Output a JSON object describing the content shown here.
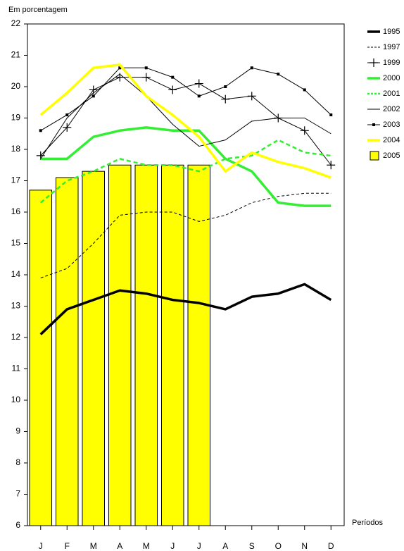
{
  "chart_data": {
    "type": "line",
    "y_label": "Em porcentagem",
    "x_label": "Períodos",
    "categories": [
      "J",
      "F",
      "M",
      "A",
      "M",
      "J",
      "J",
      "A",
      "S",
      "O",
      "N",
      "D"
    ],
    "ylim": [
      6,
      22
    ],
    "yticks": [
      6,
      7,
      8,
      9,
      10,
      11,
      12,
      13,
      14,
      15,
      16,
      17,
      18,
      19,
      20,
      21,
      22
    ],
    "legend": "right",
    "series": [
      {
        "name": "1995",
        "color": "#000000",
        "weight": "thick",
        "line_style": "solid",
        "marker": "none",
        "values": [
          12.1,
          12.9,
          13.2,
          13.5,
          13.4,
          13.2,
          13.1,
          12.9,
          13.3,
          13.4,
          13.7,
          13.2
        ]
      },
      {
        "name": "1997",
        "color": "#000000",
        "weight": "thin",
        "line_style": "dashed",
        "marker": "none",
        "values": [
          13.9,
          14.2,
          15.0,
          15.9,
          16.0,
          16.0,
          15.7,
          15.9,
          16.3,
          16.5,
          16.6,
          16.6
        ]
      },
      {
        "name": "1999",
        "color": "#000000",
        "weight": "thin",
        "line_style": "solid",
        "marker": "plus",
        "values": [
          17.8,
          18.7,
          19.9,
          20.3,
          20.3,
          19.9,
          20.1,
          19.6,
          19.7,
          19.0,
          18.6,
          17.5
        ]
      },
      {
        "name": "2000",
        "color": "#33ee33",
        "weight": "thick",
        "line_style": "solid",
        "marker": "none",
        "values": [
          17.7,
          17.7,
          18.4,
          18.6,
          18.7,
          18.6,
          18.6,
          17.7,
          17.3,
          16.3,
          16.2,
          16.2
        ]
      },
      {
        "name": "2001",
        "color": "#33ee33",
        "weight": "medium",
        "line_style": "dashed",
        "marker": "none",
        "values": [
          16.3,
          17.0,
          17.3,
          17.7,
          17.5,
          17.5,
          17.3,
          17.7,
          17.8,
          18.3,
          17.9,
          17.8
        ]
      },
      {
        "name": "2002",
        "color": "#000000",
        "weight": "thin",
        "line_style": "solid",
        "marker": "none",
        "values": [
          17.7,
          19.0,
          19.8,
          20.4,
          19.7,
          18.8,
          18.1,
          18.3,
          18.9,
          19.0,
          19.0,
          18.5
        ]
      },
      {
        "name": "2003",
        "color": "#000000",
        "weight": "thin",
        "line_style": "solid",
        "marker": "square",
        "values": [
          18.6,
          19.1,
          19.7,
          20.6,
          20.6,
          20.3,
          19.7,
          20.0,
          20.6,
          20.4,
          19.9,
          19.1
        ]
      },
      {
        "name": "2004",
        "color": "#ffff00",
        "weight": "thick",
        "line_style": "solid",
        "marker": "none",
        "values": [
          19.1,
          19.8,
          20.6,
          20.7,
          19.7,
          19.1,
          18.4,
          17.3,
          17.9,
          17.6,
          17.4,
          17.1
        ]
      },
      {
        "name": "2005",
        "color": "#ffff00",
        "type": "bar",
        "values": [
          16.7,
          17.1,
          17.3,
          17.5,
          17.5,
          17.5,
          17.5,
          null,
          null,
          null,
          null,
          null
        ]
      }
    ]
  }
}
